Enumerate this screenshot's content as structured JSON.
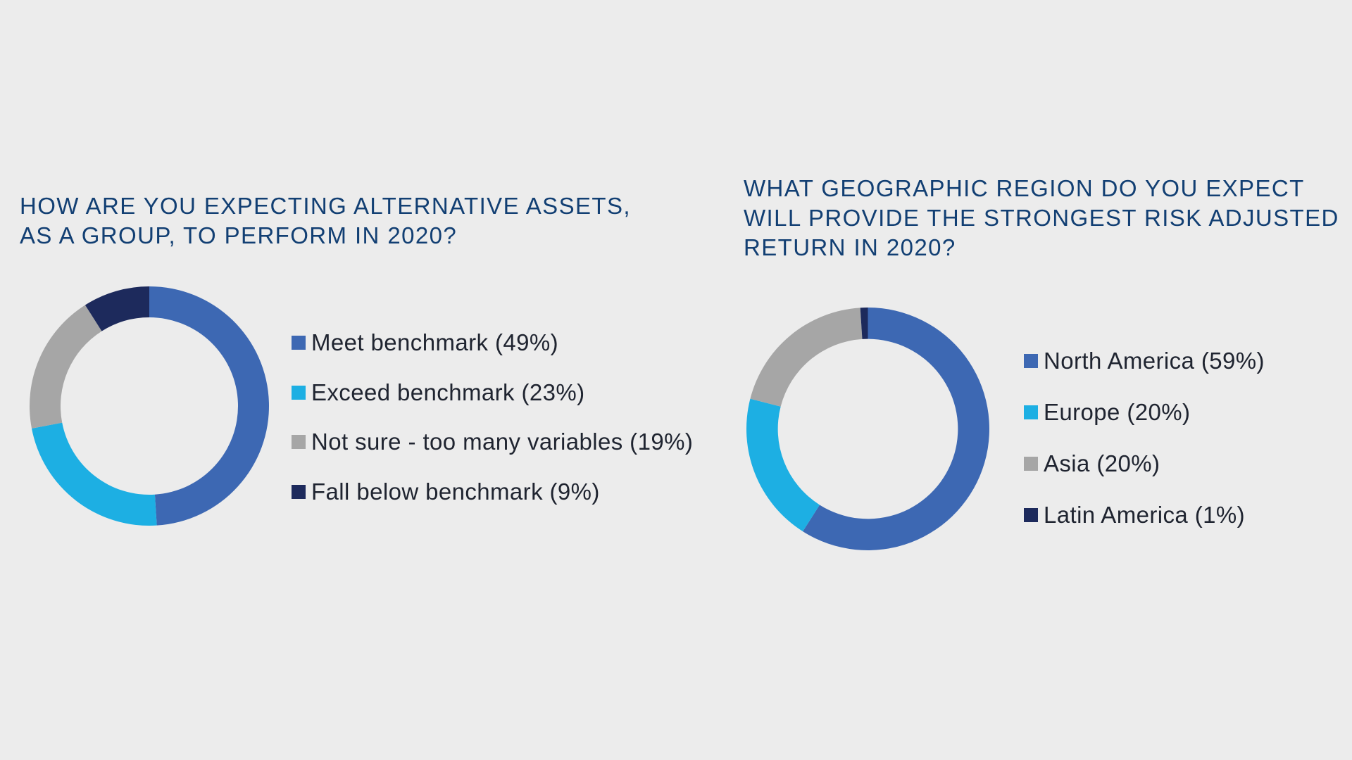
{
  "colors": {
    "background": "#ececec",
    "title": "#123f73",
    "text": "#1f2430",
    "blue": "#3d68b3",
    "cyan": "#1dafe3",
    "gray": "#a6a6a6",
    "navy": "#1d2a5c"
  },
  "chart_data": [
    {
      "type": "pie",
      "title": "HOW ARE YOU EXPECTING ALTERNATIVE ASSETS,\nAS A GROUP, TO PERFORM IN 2020?",
      "legend_position": "right",
      "categories": [
        "Meet benchmark",
        "Exceed benchmark",
        "Not sure - too many variables",
        "Fall below benchmark"
      ],
      "values": [
        49,
        23,
        19,
        9
      ],
      "labels": [
        "Meet benchmark (49%)",
        "Exceed benchmark (23%)",
        "Not sure - too many variables (19%)",
        "Fall below benchmark (9%)"
      ],
      "colors": [
        "#3d68b3",
        "#1dafe3",
        "#a6a6a6",
        "#1d2a5c"
      ]
    },
    {
      "type": "pie",
      "title": "WHAT GEOGRAPHIC REGION DO YOU EXPECT\nWILL PROVIDE THE STRONGEST RISK ADJUSTED\nRETURN IN 2020?",
      "legend_position": "right",
      "categories": [
        "North America",
        "Europe",
        "Asia",
        "Latin America"
      ],
      "values": [
        59,
        20,
        20,
        1
      ],
      "labels": [
        "North America (59%)",
        "Europe (20%)",
        "Asia (20%)",
        "Latin America (1%)"
      ],
      "colors": [
        "#3d68b3",
        "#1dafe3",
        "#a6a6a6",
        "#1d2a5c"
      ]
    }
  ]
}
